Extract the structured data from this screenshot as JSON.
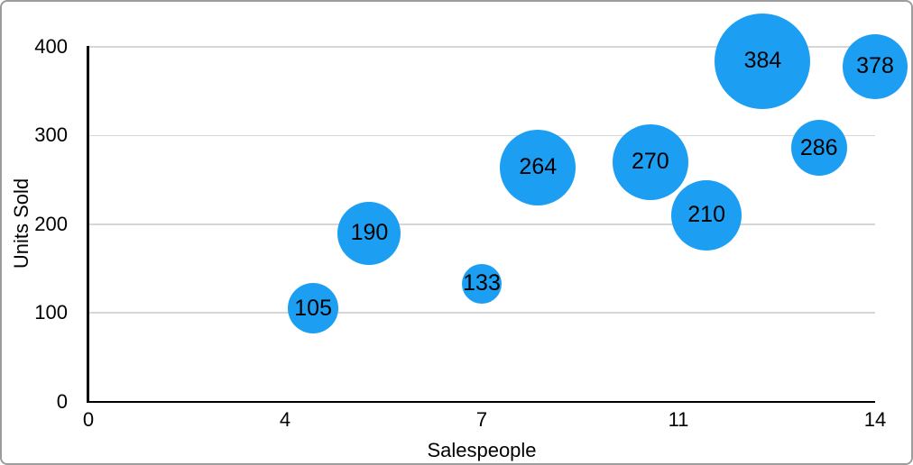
{
  "figure": {
    "background_color": "#ffffff",
    "border_color": "#9c9c9c"
  },
  "chart_data": {
    "type": "bubble",
    "title": "",
    "xlabel": "Salespeople",
    "ylabel": "Units Sold",
    "grid": true,
    "gridline_color": "#d6d6d6",
    "axis_color": "#000000",
    "text_color": "#000000",
    "x_axis": {
      "min": 0,
      "max": 14,
      "ticks": [
        {
          "label": "0",
          "value": 0
        },
        {
          "label": "4",
          "value": 3.5
        },
        {
          "label": "7",
          "value": 7
        },
        {
          "label": "11",
          "value": 10.5
        },
        {
          "label": "14",
          "value": 14
        }
      ]
    },
    "y_axis": {
      "min": 0,
      "max": 400,
      "ticks": [
        {
          "label": "0",
          "value": 0
        },
        {
          "label": "100",
          "value": 100
        },
        {
          "label": "200",
          "value": 200
        },
        {
          "label": "300",
          "value": 300
        },
        {
          "label": "400",
          "value": 400
        }
      ]
    },
    "series": [
      {
        "name": "units-sold-bubbles",
        "color": "#1c9ef2",
        "points": [
          {
            "x": 4,
            "y": 105,
            "label": "105",
            "radius_px": 28
          },
          {
            "x": 5,
            "y": 190,
            "label": "190",
            "radius_px": 35
          },
          {
            "x": 7,
            "y": 133,
            "label": "133",
            "radius_px": 22
          },
          {
            "x": 8,
            "y": 264,
            "label": "264",
            "radius_px": 42
          },
          {
            "x": 10,
            "y": 270,
            "label": "270",
            "radius_px": 42
          },
          {
            "x": 11,
            "y": 210,
            "label": "210",
            "radius_px": 39
          },
          {
            "x": 12,
            "y": 384,
            "label": "384",
            "radius_px": 53
          },
          {
            "x": 13,
            "y": 286,
            "label": "286",
            "radius_px": 31
          },
          {
            "x": 14,
            "y": 378,
            "label": "378",
            "radius_px": 36
          }
        ]
      }
    ]
  }
}
